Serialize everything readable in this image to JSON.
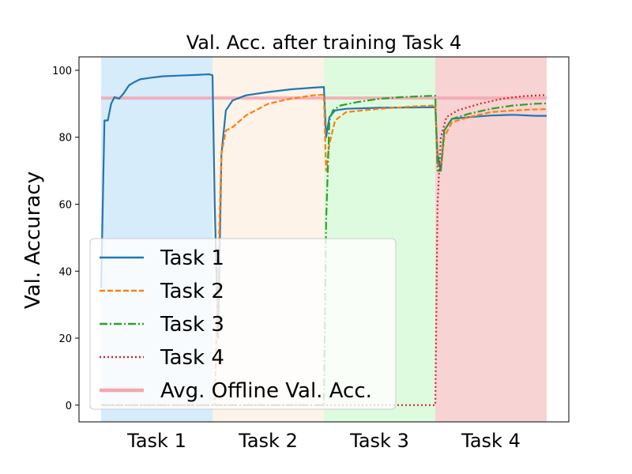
{
  "chart_data": {
    "type": "line",
    "title": "Val. Acc. after training Task 4",
    "xlabel": "",
    "ylabel": "Val. Accuracy",
    "ylim": [
      -5,
      104
    ],
    "y_ticks": [
      0,
      20,
      40,
      60,
      80,
      100
    ],
    "grid": false,
    "legend_placement": "lower-left",
    "task_regions": [
      {
        "label": "Task 1",
        "color": "#d6ecfb"
      },
      {
        "label": "Task 2",
        "color": "#fef3e9"
      },
      {
        "label": "Task 3",
        "color": "#dffbdf"
      },
      {
        "label": "Task 4",
        "color": "#f8d3d3"
      }
    ],
    "reference_line": {
      "name": "Avg. Offline Val. Acc.",
      "value": 91.7,
      "color": "#f4a6b0"
    },
    "series": [
      {
        "name": "Task 1",
        "color": "#1f77b4",
        "style": "solid",
        "points": [
          [
            0,
            35
          ],
          [
            0.03,
            85
          ],
          [
            0.06,
            85
          ],
          [
            0.09,
            90
          ],
          [
            0.12,
            92
          ],
          [
            0.16,
            91.5
          ],
          [
            0.2,
            93
          ],
          [
            0.25,
            95.5
          ],
          [
            0.3,
            96.5
          ],
          [
            0.35,
            97.3
          ],
          [
            0.45,
            97.8
          ],
          [
            0.55,
            98.2
          ],
          [
            0.7,
            98.4
          ],
          [
            0.85,
            98.6
          ],
          [
            0.97,
            98.8
          ],
          [
            1.0,
            98.5
          ],
          [
            1.02,
            60
          ],
          [
            1.05,
            20
          ],
          [
            1.08,
            75
          ],
          [
            1.12,
            88
          ],
          [
            1.18,
            91
          ],
          [
            1.3,
            92.5
          ],
          [
            1.5,
            93.5
          ],
          [
            1.7,
            94.3
          ],
          [
            1.9,
            94.8
          ],
          [
            2.0,
            95
          ],
          [
            2.02,
            80
          ],
          [
            2.05,
            86
          ],
          [
            2.1,
            88
          ],
          [
            2.2,
            88.5
          ],
          [
            2.5,
            88.8
          ],
          [
            2.8,
            88.9
          ],
          [
            3.0,
            89
          ],
          [
            3.02,
            75
          ],
          [
            3.05,
            70
          ],
          [
            3.08,
            82
          ],
          [
            3.15,
            85.5
          ],
          [
            3.3,
            86
          ],
          [
            3.5,
            86.5
          ],
          [
            3.7,
            86.7
          ],
          [
            3.9,
            86.4
          ],
          [
            4.0,
            86.4
          ]
        ]
      },
      {
        "name": "Task 2",
        "color": "#ff7f0e",
        "style": "dashed",
        "points": [
          [
            0,
            0
          ],
          [
            0.5,
            0
          ],
          [
            1.0,
            0
          ],
          [
            1.02,
            0
          ],
          [
            1.05,
            40
          ],
          [
            1.08,
            75
          ],
          [
            1.12,
            82
          ],
          [
            1.18,
            83
          ],
          [
            1.3,
            86.5
          ],
          [
            1.5,
            90
          ],
          [
            1.7,
            91.5
          ],
          [
            1.9,
            92.5
          ],
          [
            2.0,
            92.7
          ],
          [
            2.02,
            70
          ],
          [
            2.05,
            78
          ],
          [
            2.1,
            85
          ],
          [
            2.2,
            87.5
          ],
          [
            2.5,
            88.5
          ],
          [
            2.8,
            89.2
          ],
          [
            3.0,
            89.5
          ],
          [
            3.02,
            72
          ],
          [
            3.05,
            70
          ],
          [
            3.08,
            80
          ],
          [
            3.15,
            84.5
          ],
          [
            3.3,
            86
          ],
          [
            3.5,
            87.5
          ],
          [
            3.7,
            88
          ],
          [
            3.9,
            88.3
          ],
          [
            4.0,
            88.4
          ]
        ]
      },
      {
        "name": "Task 3",
        "color": "#2ca02c",
        "style": "dashdot",
        "points": [
          [
            0,
            0
          ],
          [
            1.0,
            0
          ],
          [
            2.0,
            0
          ],
          [
            2.02,
            55
          ],
          [
            2.05,
            85
          ],
          [
            2.08,
            88
          ],
          [
            2.15,
            89.5
          ],
          [
            2.3,
            90.5
          ],
          [
            2.5,
            91.5
          ],
          [
            2.7,
            92
          ],
          [
            2.9,
            92.3
          ],
          [
            3.0,
            92.4
          ],
          [
            3.02,
            70
          ],
          [
            3.05,
            70
          ],
          [
            3.08,
            82
          ],
          [
            3.15,
            85.5
          ],
          [
            3.3,
            87
          ],
          [
            3.5,
            88.5
          ],
          [
            3.7,
            89.5
          ],
          [
            3.9,
            90
          ],
          [
            4.0,
            90.1
          ]
        ]
      },
      {
        "name": "Task 4",
        "color": "#d62728",
        "style": "dotted",
        "points": [
          [
            0,
            0
          ],
          [
            1.0,
            0
          ],
          [
            2.0,
            0
          ],
          [
            3.0,
            0
          ],
          [
            3.02,
            60
          ],
          [
            3.05,
            80
          ],
          [
            3.1,
            86
          ],
          [
            3.2,
            88
          ],
          [
            3.4,
            90
          ],
          [
            3.6,
            91.5
          ],
          [
            3.8,
            92.3
          ],
          [
            4.0,
            92.6
          ]
        ]
      }
    ]
  }
}
